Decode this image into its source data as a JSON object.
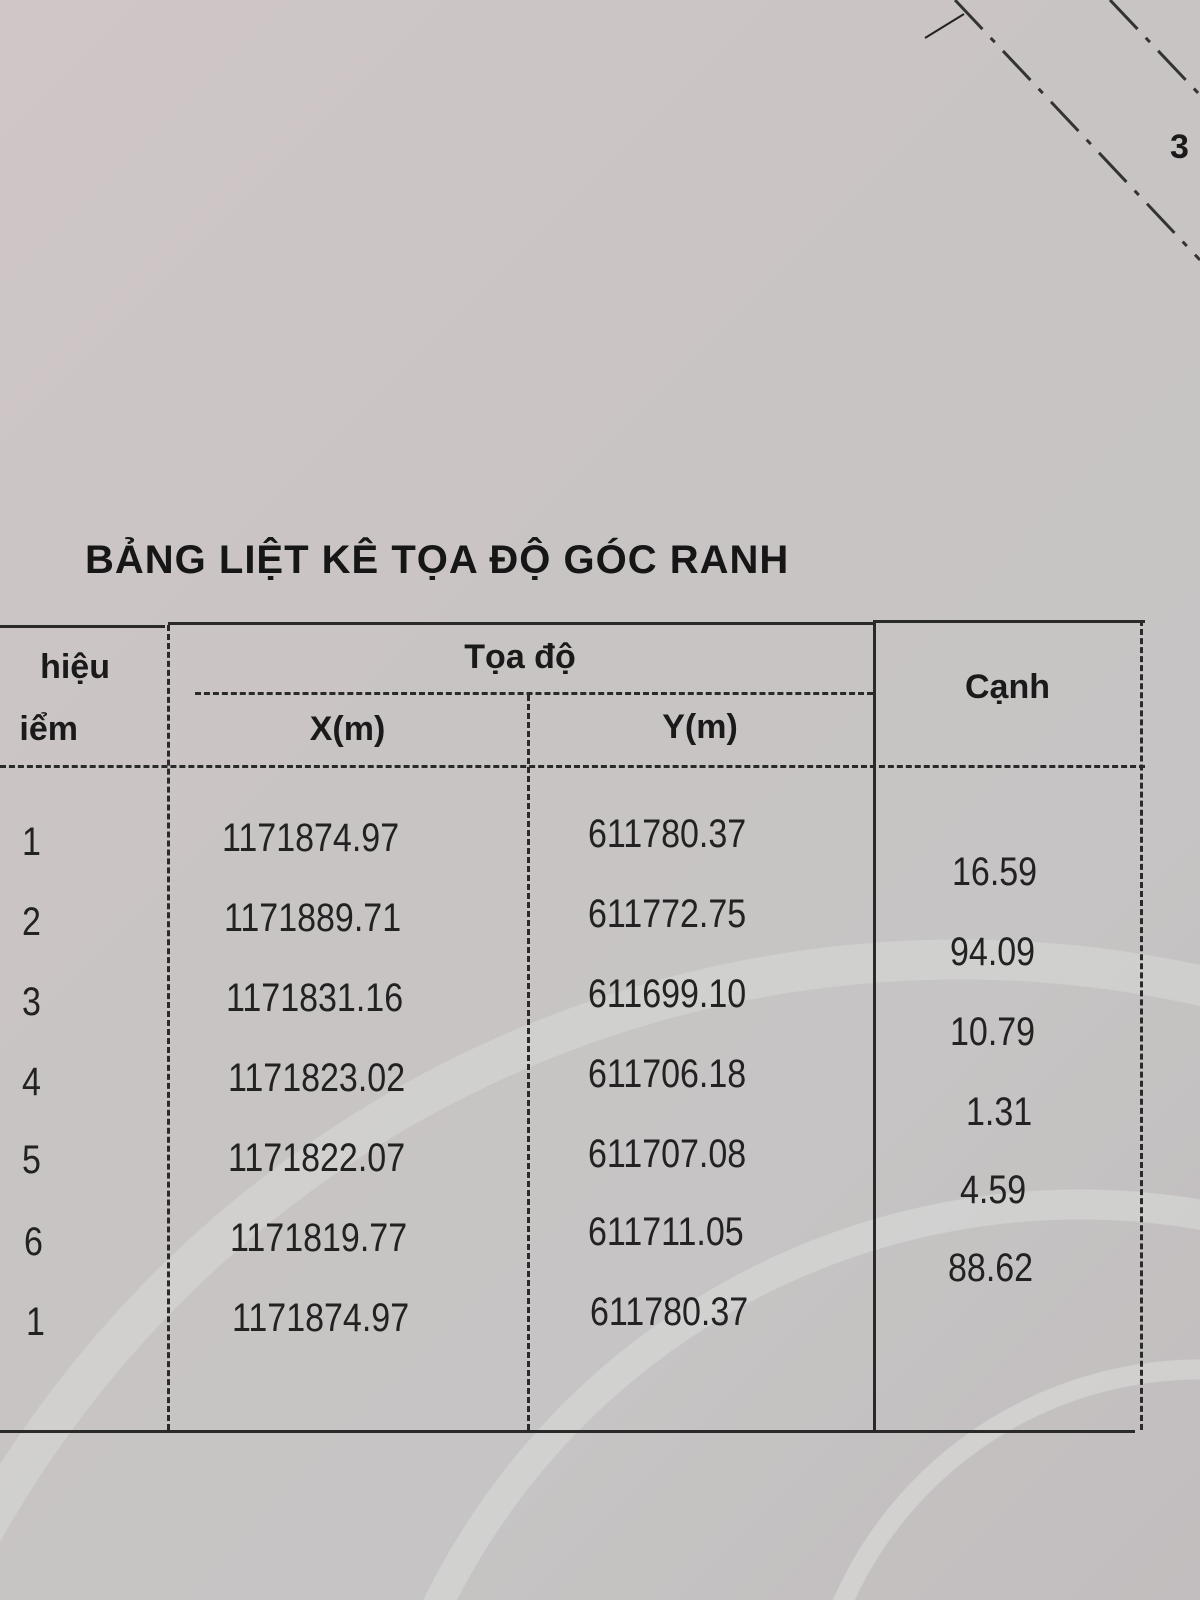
{
  "corner_label": "3",
  "title": "BẢNG LIỆT KÊ TỌA ĐỘ GÓC RANH",
  "table": {
    "headers": {
      "point_line1": "hiệu",
      "point_line2": "iểm",
      "coord_group": "Tọa độ",
      "x": "X(m)",
      "y": "Y(m)",
      "edge": "Cạnh"
    },
    "rows": [
      {
        "point": "1",
        "x": "1171874.97",
        "y": "611780.37"
      },
      {
        "point": "2",
        "x": "1171889.71",
        "y": "611772.75"
      },
      {
        "point": "3",
        "x": "1171831.16",
        "y": "611699.10"
      },
      {
        "point": "4",
        "x": "1171823.02",
        "y": "611706.18"
      },
      {
        "point": "5",
        "x": "1171822.07",
        "y": "611707.08"
      },
      {
        "point": "6",
        "x": "1171819.77",
        "y": "611711.05"
      },
      {
        "point": "1",
        "x": "1171874.97",
        "y": "611780.37"
      }
    ],
    "edges": [
      "16.59",
      "94.09",
      "10.79",
      "1.31",
      "4.59",
      "88.62"
    ]
  }
}
